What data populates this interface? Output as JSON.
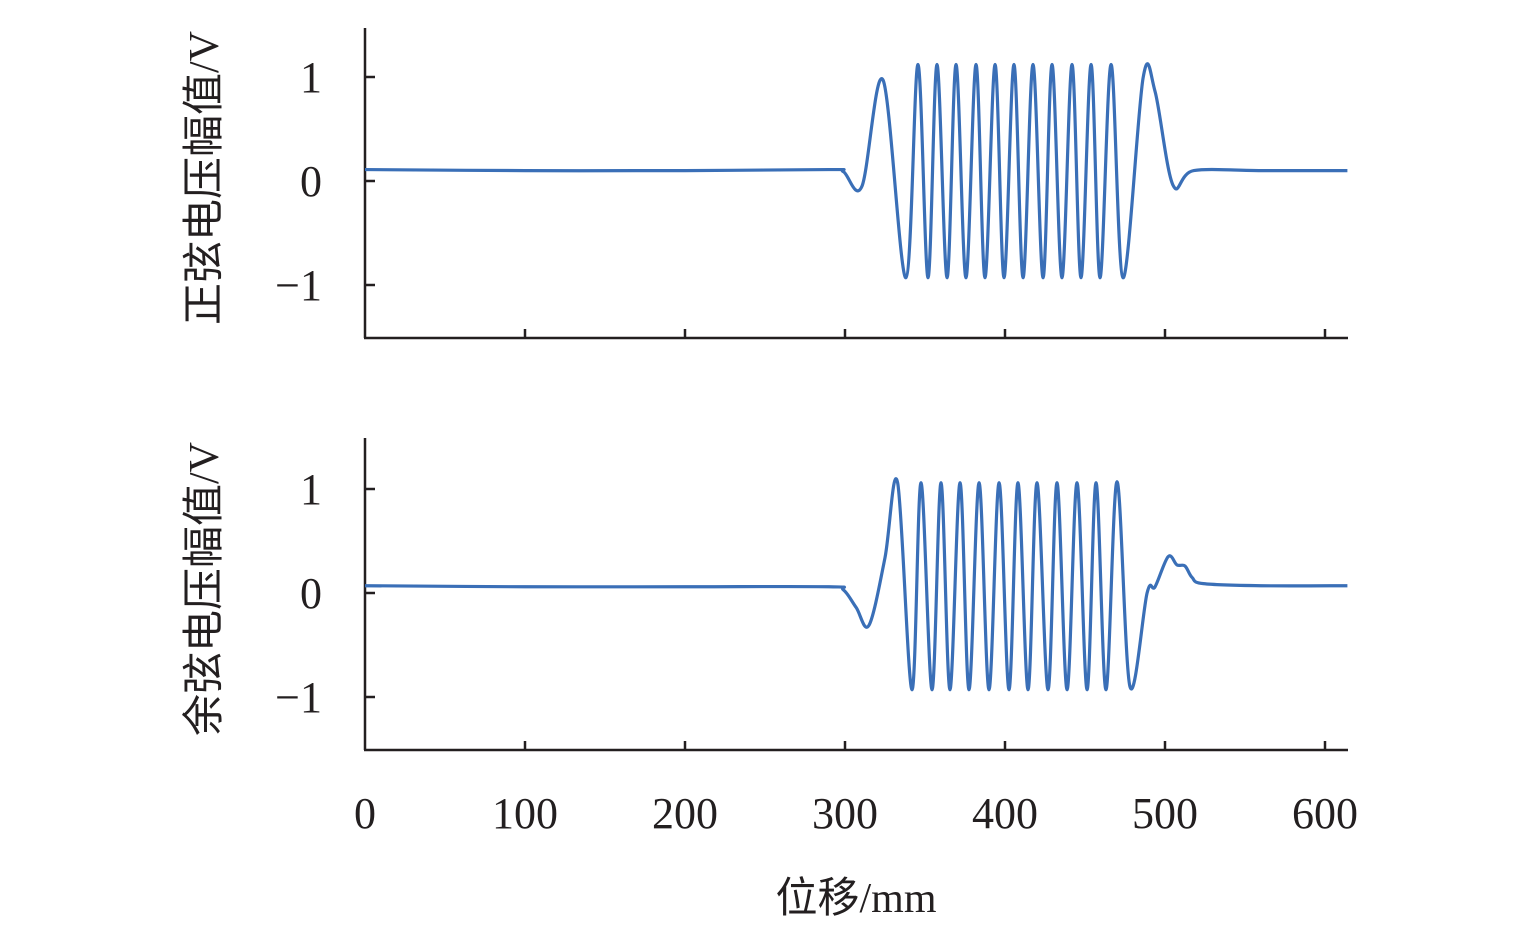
{
  "chart_data": [
    {
      "type": "line",
      "ylabel": "正弦电压幅值/V",
      "xlabel": "",
      "xlim": [
        0,
        614
      ],
      "ylim": [
        -1.5,
        1.5
      ],
      "xticks": [
        0,
        100,
        200,
        300,
        400,
        500,
        600
      ],
      "show_xtick_labels": false,
      "yticks": [
        1,
        0,
        -1
      ],
      "ytick_labels": [
        "1",
        "0",
        "−1"
      ],
      "grid": false,
      "color": "#3a6fb7",
      "series": [
        {
          "name": "正弦电压",
          "points": [
            [
              0,
              0.11
            ],
            [
              100,
              0.1
            ],
            [
              200,
              0.1
            ],
            [
              290,
              0.11
            ],
            [
              299,
              0.09
            ],
            [
              310.6,
              -0.05
            ],
            [
              323.8,
              0.97
            ],
            [
              338.1,
              -0.93
            ],
            [
              345.6,
              1.12
            ],
            [
              351.9,
              -0.93
            ],
            [
              357.5,
              1.12
            ],
            [
              363.8,
              -0.93
            ],
            [
              369.4,
              1.12
            ],
            [
              375.6,
              -0.93
            ],
            [
              381.9,
              1.12
            ],
            [
              387.5,
              -0.93
            ],
            [
              393.8,
              1.12
            ],
            [
              399.4,
              -0.93
            ],
            [
              405.6,
              1.12
            ],
            [
              411.3,
              -0.93
            ],
            [
              417.5,
              1.12
            ],
            [
              423.8,
              -0.93
            ],
            [
              429.4,
              1.12
            ],
            [
              435.6,
              -0.93
            ],
            [
              441.9,
              1.12
            ],
            [
              447.5,
              -0.93
            ],
            [
              453.8,
              1.12
            ],
            [
              459.4,
              -0.93
            ],
            [
              466.3,
              1.12
            ],
            [
              473.8,
              -0.93
            ],
            [
              486.3,
              0.99
            ],
            [
              493.8,
              0.86
            ],
            [
              505,
              -0.04
            ],
            [
              518,
              0.1
            ],
            [
              560,
              0.1
            ],
            [
              614,
              0.1
            ]
          ]
        }
      ]
    },
    {
      "type": "line",
      "ylabel": "余弦电压幅值/V",
      "xlabel": "位移/mm",
      "xlim": [
        0,
        614
      ],
      "ylim": [
        -1.5,
        1.5
      ],
      "xticks": [
        0,
        100,
        200,
        300,
        400,
        500,
        600
      ],
      "xtick_labels": [
        "0",
        "100",
        "200",
        "300",
        "400",
        "500",
        "600"
      ],
      "show_xtick_labels": true,
      "yticks": [
        1,
        0,
        -1
      ],
      "ytick_labels": [
        "1",
        "0",
        "−1"
      ],
      "grid": false,
      "color": "#3a6fb7",
      "series": [
        {
          "name": "余弦电压",
          "points": [
            [
              0,
              0.07
            ],
            [
              100,
              0.06
            ],
            [
              200,
              0.06
            ],
            [
              290,
              0.06
            ],
            [
              299,
              0.03
            ],
            [
              307,
              -0.14
            ],
            [
              315,
              -0.31
            ],
            [
              325,
              0.34
            ],
            [
              332.9,
              1.06
            ],
            [
              341.9,
              -0.93
            ],
            [
              347.5,
              1.06
            ],
            [
              354.4,
              -0.93
            ],
            [
              360,
              1.06
            ],
            [
              365.6,
              -0.93
            ],
            [
              371.9,
              1.06
            ],
            [
              377.5,
              -0.93
            ],
            [
              383.8,
              1.06
            ],
            [
              390,
              -0.93
            ],
            [
              396.3,
              1.06
            ],
            [
              402.5,
              -0.93
            ],
            [
              408.1,
              1.06
            ],
            [
              414.4,
              -0.93
            ],
            [
              420,
              1.06
            ],
            [
              426.9,
              -0.93
            ],
            [
              432.5,
              1.06
            ],
            [
              438.8,
              -0.93
            ],
            [
              445,
              1.06
            ],
            [
              451.3,
              -0.93
            ],
            [
              456.9,
              1.06
            ],
            [
              463.1,
              -0.93
            ],
            [
              470,
              1.07
            ],
            [
              478.1,
              -0.9
            ],
            [
              488.8,
              0.0
            ],
            [
              493.8,
              0.06
            ],
            [
              502,
              0.35
            ],
            [
              507.5,
              0.27
            ],
            [
              512.5,
              0.26
            ],
            [
              516.9,
              0.15
            ],
            [
              524,
              0.09
            ],
            [
              560,
              0.07
            ],
            [
              614,
              0.07
            ]
          ]
        }
      ]
    }
  ]
}
